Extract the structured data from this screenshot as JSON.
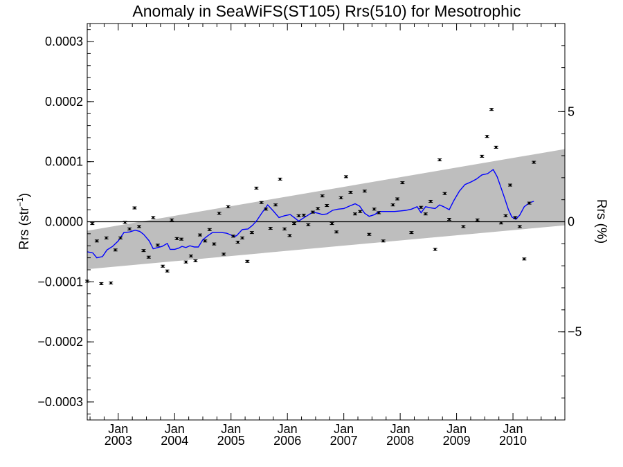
{
  "chart_data": {
    "type": "scatter",
    "title": "Anomaly in SeaWiFS(ST105) Rrs(510) for Mesotrophic",
    "ylabel_left": "Rrs (str",
    "ylabel_left_sup": "−1",
    "ylabel_left_close": ")",
    "ylabel_right": "Rrs (%)",
    "xlim": [
      2002.45,
      2010.92
    ],
    "ylim": [
      -0.00033,
      0.00033
    ],
    "ylim_right": [
      -9.0,
      9.0
    ],
    "yticks_left": [
      {
        "v": 0.0003,
        "label": "0.0003"
      },
      {
        "v": 0.0002,
        "label": "0.0002"
      },
      {
        "v": 0.0001,
        "label": "0.0001"
      },
      {
        "v": 0.0,
        "label": "0.0000"
      },
      {
        "v": -0.0001,
        "label": "−0.0001"
      },
      {
        "v": -0.0002,
        "label": "−0.0002"
      },
      {
        "v": -0.0003,
        "label": "−0.0003"
      }
    ],
    "yticks_right": [
      {
        "v": 5,
        "label": "5"
      },
      {
        "v": 0,
        "label": "0"
      },
      {
        "v": -5,
        "label": "−5"
      }
    ],
    "xticks": [
      {
        "v": 2003.0,
        "month": "Jan",
        "year": "2003"
      },
      {
        "v": 2004.0,
        "month": "Jan",
        "year": "2004"
      },
      {
        "v": 2005.0,
        "month": "Jan",
        "year": "2005"
      },
      {
        "v": 2006.0,
        "month": "Jan",
        "year": "2006"
      },
      {
        "v": 2007.0,
        "month": "Jan",
        "year": "2007"
      },
      {
        "v": 2008.0,
        "month": "Jan",
        "year": "2008"
      },
      {
        "v": 2009.0,
        "month": "Jan",
        "year": "2009"
      },
      {
        "v": 2010.0,
        "month": "Jan",
        "year": "2010"
      }
    ],
    "band": {
      "start_lower": -7.9e-05,
      "start_upper": -1.5e-05,
      "end_lower": -6e-06,
      "end_upper": 0.000121
    },
    "zero_line": 0.0,
    "points": [
      [
        2002.45,
        -9.9e-05
      ],
      [
        2002.54,
        -3e-06
      ],
      [
        2002.62,
        -3.2e-05
      ],
      [
        2002.7,
        -0.000103
      ],
      [
        2002.79,
        -2.7e-05
      ],
      [
        2002.87,
        -0.000102
      ],
      [
        2002.95,
        -4.7e-05
      ],
      [
        2003.04,
        -2.7e-05
      ],
      [
        2003.12,
        -1e-06
      ],
      [
        2003.2,
        -1.2e-05
      ],
      [
        2003.29,
        2.3e-05
      ],
      [
        2003.37,
        -8e-06
      ],
      [
        2003.45,
        -4.8e-05
      ],
      [
        2003.54,
        -5.9e-05
      ],
      [
        2003.62,
        7e-06
      ],
      [
        2003.7,
        -3.9e-05
      ],
      [
        2003.79,
        -7.4e-05
      ],
      [
        2003.87,
        -8.2e-05
      ],
      [
        2003.95,
        3e-06
      ],
      [
        2004.04,
        -2.8e-05
      ],
      [
        2004.12,
        -2.9e-05
      ],
      [
        2004.2,
        -6.7e-05
      ],
      [
        2004.29,
        -5.7e-05
      ],
      [
        2004.37,
        -6.5e-05
      ],
      [
        2004.45,
        -2.2e-05
      ],
      [
        2004.54,
        -3.2e-05
      ],
      [
        2004.62,
        -1.3e-05
      ],
      [
        2004.7,
        -3.7e-05
      ],
      [
        2004.79,
        1.4e-05
      ],
      [
        2004.87,
        -5.4e-05
      ],
      [
        2004.95,
        2.5e-05
      ],
      [
        2005.04,
        -2.4e-05
      ],
      [
        2005.12,
        -3.4e-05
      ],
      [
        2005.2,
        -2.7e-05
      ],
      [
        2005.29,
        -6.6e-05
      ],
      [
        2005.37,
        -1.8e-05
      ],
      [
        2005.45,
        5.6e-05
      ],
      [
        2005.54,
        3.2e-05
      ],
      [
        2005.62,
        2.1e-05
      ],
      [
        2005.7,
        -1.1e-05
      ],
      [
        2005.79,
        2.8e-05
      ],
      [
        2005.87,
        7.1e-05
      ],
      [
        2005.95,
        -1.2e-05
      ],
      [
        2006.04,
        -2.3e-05
      ],
      [
        2006.12,
        -3e-06
      ],
      [
        2006.2,
        1e-05
      ],
      [
        2006.29,
        1.1e-05
      ],
      [
        2006.37,
        -5e-06
      ],
      [
        2006.45,
        1.6e-05
      ],
      [
        2006.54,
        2.2e-05
      ],
      [
        2006.62,
        4.3e-05
      ],
      [
        2006.7,
        2.7e-05
      ],
      [
        2006.79,
        -3e-06
      ],
      [
        2006.87,
        -1.7e-05
      ],
      [
        2006.95,
        4e-05
      ],
      [
        2007.04,
        7.5e-05
      ],
      [
        2007.12,
        4.9e-05
      ],
      [
        2007.2,
        1.3e-05
      ],
      [
        2007.29,
        1.7e-05
      ],
      [
        2007.37,
        5.1e-05
      ],
      [
        2007.45,
        -2.1e-05
      ],
      [
        2007.54,
        2.1e-05
      ],
      [
        2007.62,
        1.5e-05
      ],
      [
        2007.7,
        -3.2e-05
      ],
      [
        2007.87,
        2.8e-05
      ],
      [
        2007.95,
        3.8e-05
      ],
      [
        2008.04,
        6.5e-05
      ],
      [
        2008.2,
        -1.8e-05
      ],
      [
        2008.37,
        2.4e-05
      ],
      [
        2008.45,
        1.3e-05
      ],
      [
        2008.54,
        3.4e-05
      ],
      [
        2008.62,
        -4.6e-05
      ],
      [
        2008.7,
        0.000103
      ],
      [
        2008.79,
        4.7e-05
      ],
      [
        2008.87,
        4e-06
      ],
      [
        2009.12,
        -8e-06
      ],
      [
        2009.37,
        3e-06
      ],
      [
        2009.45,
        0.000109
      ],
      [
        2009.54,
        0.000142
      ],
      [
        2009.62,
        0.000187
      ],
      [
        2009.7,
        0.000124
      ],
      [
        2009.79,
        -2e-06
      ],
      [
        2009.87,
        1e-05
      ],
      [
        2009.95,
        6.1e-05
      ],
      [
        2010.04,
        7e-06
      ],
      [
        2010.12,
        -8e-06
      ],
      [
        2010.2,
        -6.2e-05
      ],
      [
        2010.29,
        3.1e-05
      ],
      [
        2010.37,
        9.9e-05
      ]
    ],
    "running_mean": [
      [
        2002.45,
        -5e-05
      ],
      [
        2002.55,
        -5.2e-05
      ],
      [
        2002.62,
        -6e-05
      ],
      [
        2002.72,
        -5.8e-05
      ],
      [
        2002.8,
        -4.7e-05
      ],
      [
        2002.9,
        -4.1e-05
      ],
      [
        2003.0,
        -3.2e-05
      ],
      [
        2003.1,
        -1.8e-05
      ],
      [
        2003.2,
        -1.7e-05
      ],
      [
        2003.3,
        -1.4e-05
      ],
      [
        2003.38,
        -1.6e-05
      ],
      [
        2003.45,
        -2.1e-05
      ],
      [
        2003.55,
        -3.2e-05
      ],
      [
        2003.62,
        -4.5e-05
      ],
      [
        2003.7,
        -4.3e-05
      ],
      [
        2003.78,
        -4.1e-05
      ],
      [
        2003.87,
        -3.6e-05
      ],
      [
        2003.92,
        -4.6e-05
      ],
      [
        2004.0,
        -4.6e-05
      ],
      [
        2004.07,
        -4.4e-05
      ],
      [
        2004.13,
        -4.1e-05
      ],
      [
        2004.2,
        -4.3e-05
      ],
      [
        2004.27,
        -4e-05
      ],
      [
        2004.35,
        -4.2e-05
      ],
      [
        2004.42,
        -4.2e-05
      ],
      [
        2004.5,
        -3e-05
      ],
      [
        2004.58,
        -2.4e-05
      ],
      [
        2004.67,
        -1.8e-05
      ],
      [
        2004.75,
        -1.8e-05
      ],
      [
        2004.83,
        -1.8e-05
      ],
      [
        2004.92,
        -1.9e-05
      ],
      [
        2005.0,
        -2.2e-05
      ],
      [
        2005.05,
        -2.5e-05
      ],
      [
        2005.1,
        -2.3e-05
      ],
      [
        2005.2,
        -1.3e-05
      ],
      [
        2005.3,
        -1.2e-05
      ],
      [
        2005.38,
        -6e-06
      ],
      [
        2005.45,
        1e-06
      ],
      [
        2005.55,
        1.5e-05
      ],
      [
        2005.65,
        2.8e-05
      ],
      [
        2005.75,
        1.8e-05
      ],
      [
        2005.85,
        7e-06
      ],
      [
        2005.95,
        1e-05
      ],
      [
        2006.05,
        1.2e-05
      ],
      [
        2006.12,
        7e-06
      ],
      [
        2006.2,
        1e-06
      ],
      [
        2006.28,
        6e-06
      ],
      [
        2006.35,
        1e-05
      ],
      [
        2006.45,
        1.6e-05
      ],
      [
        2006.55,
        1.4e-05
      ],
      [
        2006.62,
        1.2e-05
      ],
      [
        2006.7,
        1.3e-05
      ],
      [
        2006.8,
        1.9e-05
      ],
      [
        2006.9,
        2.1e-05
      ],
      [
        2007.0,
        2.2e-05
      ],
      [
        2007.1,
        2.6e-05
      ],
      [
        2007.2,
        3e-05
      ],
      [
        2007.28,
        2.6e-05
      ],
      [
        2007.37,
        1.4e-05
      ],
      [
        2007.45,
        9e-06
      ],
      [
        2007.55,
        1.2e-05
      ],
      [
        2007.62,
        1.7e-05
      ],
      [
        2007.7,
        1.7e-05
      ],
      [
        2007.8,
        1.7e-05
      ],
      [
        2007.9,
        1.7e-05
      ],
      [
        2008.0,
        1.8e-05
      ],
      [
        2008.1,
        1.9e-05
      ],
      [
        2008.2,
        2.1e-05
      ],
      [
        2008.3,
        2.5e-05
      ],
      [
        2008.37,
        1.5e-05
      ],
      [
        2008.45,
        2.5e-05
      ],
      [
        2008.55,
        2.3e-05
      ],
      [
        2008.62,
        2.2e-05
      ],
      [
        2008.7,
        2.8e-05
      ],
      [
        2008.77,
        2.5e-05
      ],
      [
        2008.87,
        2e-05
      ],
      [
        2008.95,
        3.5e-05
      ],
      [
        2009.05,
        5.1e-05
      ],
      [
        2009.15,
        6.2e-05
      ],
      [
        2009.25,
        6.6e-05
      ],
      [
        2009.35,
        7.1e-05
      ],
      [
        2009.45,
        7.8e-05
      ],
      [
        2009.55,
        8e-05
      ],
      [
        2009.65,
        8.7e-05
      ],
      [
        2009.72,
        7.5e-05
      ],
      [
        2009.78,
        5.9e-05
      ],
      [
        2009.85,
        4e-05
      ],
      [
        2009.92,
        2e-05
      ],
      [
        2009.98,
        8e-06
      ],
      [
        2010.05,
        4e-06
      ],
      [
        2010.12,
        1.1e-05
      ],
      [
        2010.2,
        2.5e-05
      ],
      [
        2010.3,
        3.2e-05
      ],
      [
        2010.37,
        3.4e-05
      ]
    ]
  },
  "colors": {
    "band": "#bebebe",
    "running_mean": "#0000ff",
    "points": "#000000",
    "axes": "#000000"
  }
}
